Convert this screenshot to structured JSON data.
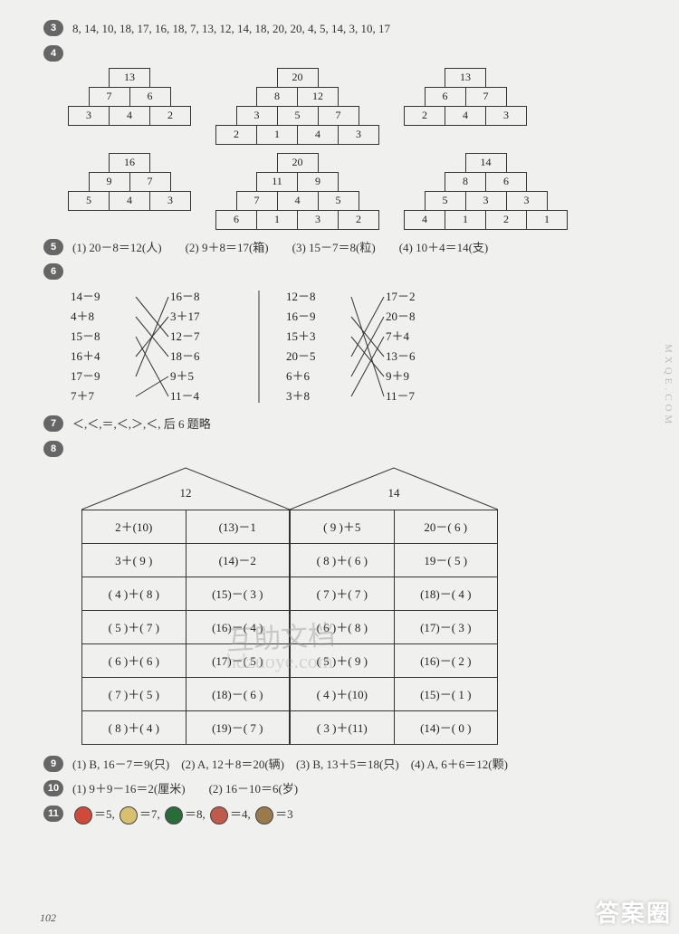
{
  "q3": {
    "text": "8, 14, 10, 18, 17, 16, 18, 7, 13, 12, 14, 18, 20, 20, 4, 5, 14, 3, 10, 17"
  },
  "q4": {
    "pyramids": [
      {
        "rows": [
          [
            "13"
          ],
          [
            "7",
            "6"
          ],
          [
            "3",
            "4",
            "2"
          ]
        ]
      },
      {
        "rows": [
          [
            "20"
          ],
          [
            "8",
            "12"
          ],
          [
            "3",
            "5",
            "7"
          ],
          [
            "2",
            "1",
            "4",
            "3"
          ]
        ]
      },
      {
        "rows": [
          [
            "13"
          ],
          [
            "6",
            "7"
          ],
          [
            "2",
            "4",
            "3"
          ]
        ]
      },
      {
        "rows": [
          [
            "16"
          ],
          [
            "9",
            "7"
          ],
          [
            "5",
            "4",
            "3"
          ]
        ]
      },
      {
        "rows": [
          [
            "20"
          ],
          [
            "11",
            "9"
          ],
          [
            "7",
            "4",
            "5"
          ],
          [
            "6",
            "1",
            "3",
            "2"
          ]
        ]
      },
      {
        "rows": [
          [
            "14"
          ],
          [
            "8",
            "6"
          ],
          [
            "5",
            "3",
            "3"
          ],
          [
            "4",
            "1",
            "2",
            "1"
          ]
        ]
      }
    ]
  },
  "q5": {
    "parts": [
      "(1) 20－8＝12(人)",
      "(2) 9＋8＝17(箱)",
      "(3) 15－7＝8(粒)",
      "(4) 10＋4＝14(支)"
    ]
  },
  "q6": {
    "left": {
      "colA": [
        "14－9",
        "4＋8",
        "15－8",
        "16＋4",
        "17－9",
        "7＋7"
      ],
      "colB": [
        "16－8",
        "3＋17",
        "12－7",
        "18－6",
        "9＋5",
        "11－4"
      ],
      "lines": [
        [
          0,
          2
        ],
        [
          1,
          3
        ],
        [
          2,
          5
        ],
        [
          3,
          1
        ],
        [
          4,
          0
        ],
        [
          5,
          4
        ]
      ]
    },
    "right": {
      "colA": [
        "12－8",
        "16－9",
        "15＋3",
        "20－5",
        "6＋6",
        "3＋8"
      ],
      "colB": [
        "17－2",
        "20－8",
        "7＋4",
        "13－6",
        "9＋9",
        "11－7"
      ],
      "lines": [
        [
          0,
          5
        ],
        [
          1,
          3
        ],
        [
          2,
          4
        ],
        [
          3,
          0
        ],
        [
          4,
          1
        ],
        [
          5,
          2
        ]
      ]
    }
  },
  "q7": {
    "text": "＜,＜,＝,＜,＞,＜, 后 6 题略"
  },
  "q8": {
    "houses": [
      {
        "label": "12",
        "rows": [
          [
            "2＋(10)",
            "(13)－1"
          ],
          [
            "3＋( 9 )",
            "(14)－2"
          ],
          [
            "( 4 )＋( 8 )",
            "(15)－( 3 )"
          ],
          [
            "( 5 )＋( 7 )",
            "(16)－( 4 )"
          ],
          [
            "( 6 )＋( 6 )",
            "(17)－( 5 )"
          ],
          [
            "( 7 )＋( 5 )",
            "(18)－( 6 )"
          ],
          [
            "( 8 )＋( 4 )",
            "(19)－( 7 )"
          ]
        ]
      },
      {
        "label": "14",
        "rows": [
          [
            "( 9 )＋5",
            "20－( 6 )"
          ],
          [
            "( 8 )＋( 6 )",
            "19－( 5 )"
          ],
          [
            "( 7 )＋( 7 )",
            "(18)－( 4 )"
          ],
          [
            "( 6 )＋( 8 )",
            "(17)－( 3 )"
          ],
          [
            "( 5 )＋( 9 )",
            "(16)－( 2 )"
          ],
          [
            "( 4 )＋(10)",
            "(15)－( 1 )"
          ],
          [
            "( 3 )＋(11)",
            "(14)－( 0 )"
          ]
        ]
      }
    ]
  },
  "q9": {
    "parts": [
      "(1) B, 16－7＝9(只)",
      "(2) A, 12＋8＝20(辆)",
      "(3) B, 13＋5＝18(只)",
      "(4) A, 6＋6＝12(颗)"
    ]
  },
  "q10": {
    "parts": [
      "(1) 9＋9－16＝2(厘米)",
      "(2) 16－10＝6(岁)"
    ]
  },
  "q11": {
    "items": [
      {
        "color": "#d04a3a",
        "val": "＝5,"
      },
      {
        "color": "#d8c070",
        "val": "＝7,"
      },
      {
        "color": "#2a6b3a",
        "val": "＝8,"
      },
      {
        "color": "#c05a4a",
        "val": "＝4,"
      },
      {
        "color": "#9a7a4a",
        "val": "＝3"
      }
    ]
  },
  "page": "102",
  "watermark": {
    "a": "互助文档",
    "b": "hdzuoye.com",
    "side": "MXQE.COM",
    "corner": "答案圈"
  }
}
